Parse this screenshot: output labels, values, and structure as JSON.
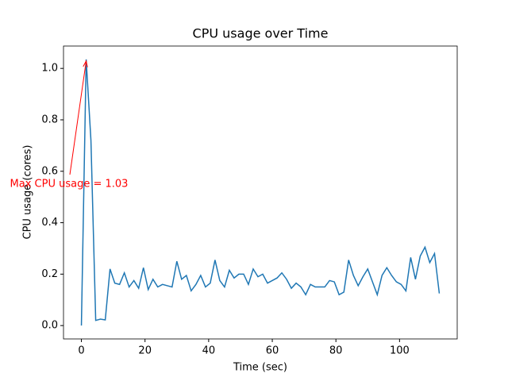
{
  "chart_data": {
    "type": "line",
    "title": "CPU usage over Time",
    "xlabel": "Time (sec)",
    "ylabel": "CPU usage (cores)",
    "annotation": "Max CPU usage = 1.03",
    "annotation_color": "#ff0000",
    "color": "#1f77b4",
    "x": [
      0,
      1.5,
      3,
      4.5,
      6,
      7.5,
      9,
      10.5,
      12,
      13.5,
      15,
      16.5,
      18,
      19.5,
      21,
      22.5,
      24,
      25.5,
      27,
      28.5,
      30,
      31.5,
      33,
      34.5,
      36,
      37.5,
      39,
      40.5,
      42,
      43.5,
      45,
      46.5,
      48,
      49.5,
      51,
      52.5,
      54,
      55.5,
      57,
      58.5,
      60,
      61.5,
      63,
      64.5,
      66,
      67.5,
      69,
      70.5,
      72,
      73.5,
      75,
      76.5,
      78,
      79.5,
      81,
      82.5,
      84,
      85.5,
      87,
      88.5,
      90,
      91.5,
      93,
      94.5,
      96,
      97.5,
      99,
      100.5,
      102,
      103.5,
      105,
      106.5,
      108,
      109.5,
      111,
      112.5
    ],
    "values": [
      0.0,
      1.035,
      0.72,
      0.02,
      0.025,
      0.022,
      0.22,
      0.165,
      0.16,
      0.205,
      0.15,
      0.175,
      0.145,
      0.225,
      0.14,
      0.18,
      0.15,
      0.16,
      0.155,
      0.15,
      0.25,
      0.18,
      0.195,
      0.135,
      0.16,
      0.195,
      0.15,
      0.165,
      0.255,
      0.175,
      0.15,
      0.215,
      0.185,
      0.2,
      0.2,
      0.16,
      0.22,
      0.19,
      0.2,
      0.165,
      0.175,
      0.185,
      0.205,
      0.18,
      0.145,
      0.165,
      0.15,
      0.12,
      0.16,
      0.15,
      0.15,
      0.15,
      0.175,
      0.17,
      0.12,
      0.13,
      0.255,
      0.195,
      0.155,
      0.19,
      0.22,
      0.17,
      0.12,
      0.195,
      0.225,
      0.195,
      0.17,
      0.16,
      0.135,
      0.265,
      0.18,
      0.27,
      0.305,
      0.245,
      0.28,
      0.125
    ],
    "xlim": [
      -5.625,
      118.125
    ],
    "ylim": [
      -0.052,
      1.087
    ],
    "xticks": [
      0,
      20,
      40,
      60,
      80,
      100
    ],
    "yticks": [
      {
        "value": 0,
        "label": "0.0"
      },
      {
        "value": 0.2,
        "label": "0.2"
      },
      {
        "value": 0.4,
        "label": "0.4"
      },
      {
        "value": 0.6,
        "label": "0.6"
      },
      {
        "value": 0.8,
        "label": "0.8"
      },
      {
        "value": 1,
        "label": "1.0"
      }
    ]
  }
}
